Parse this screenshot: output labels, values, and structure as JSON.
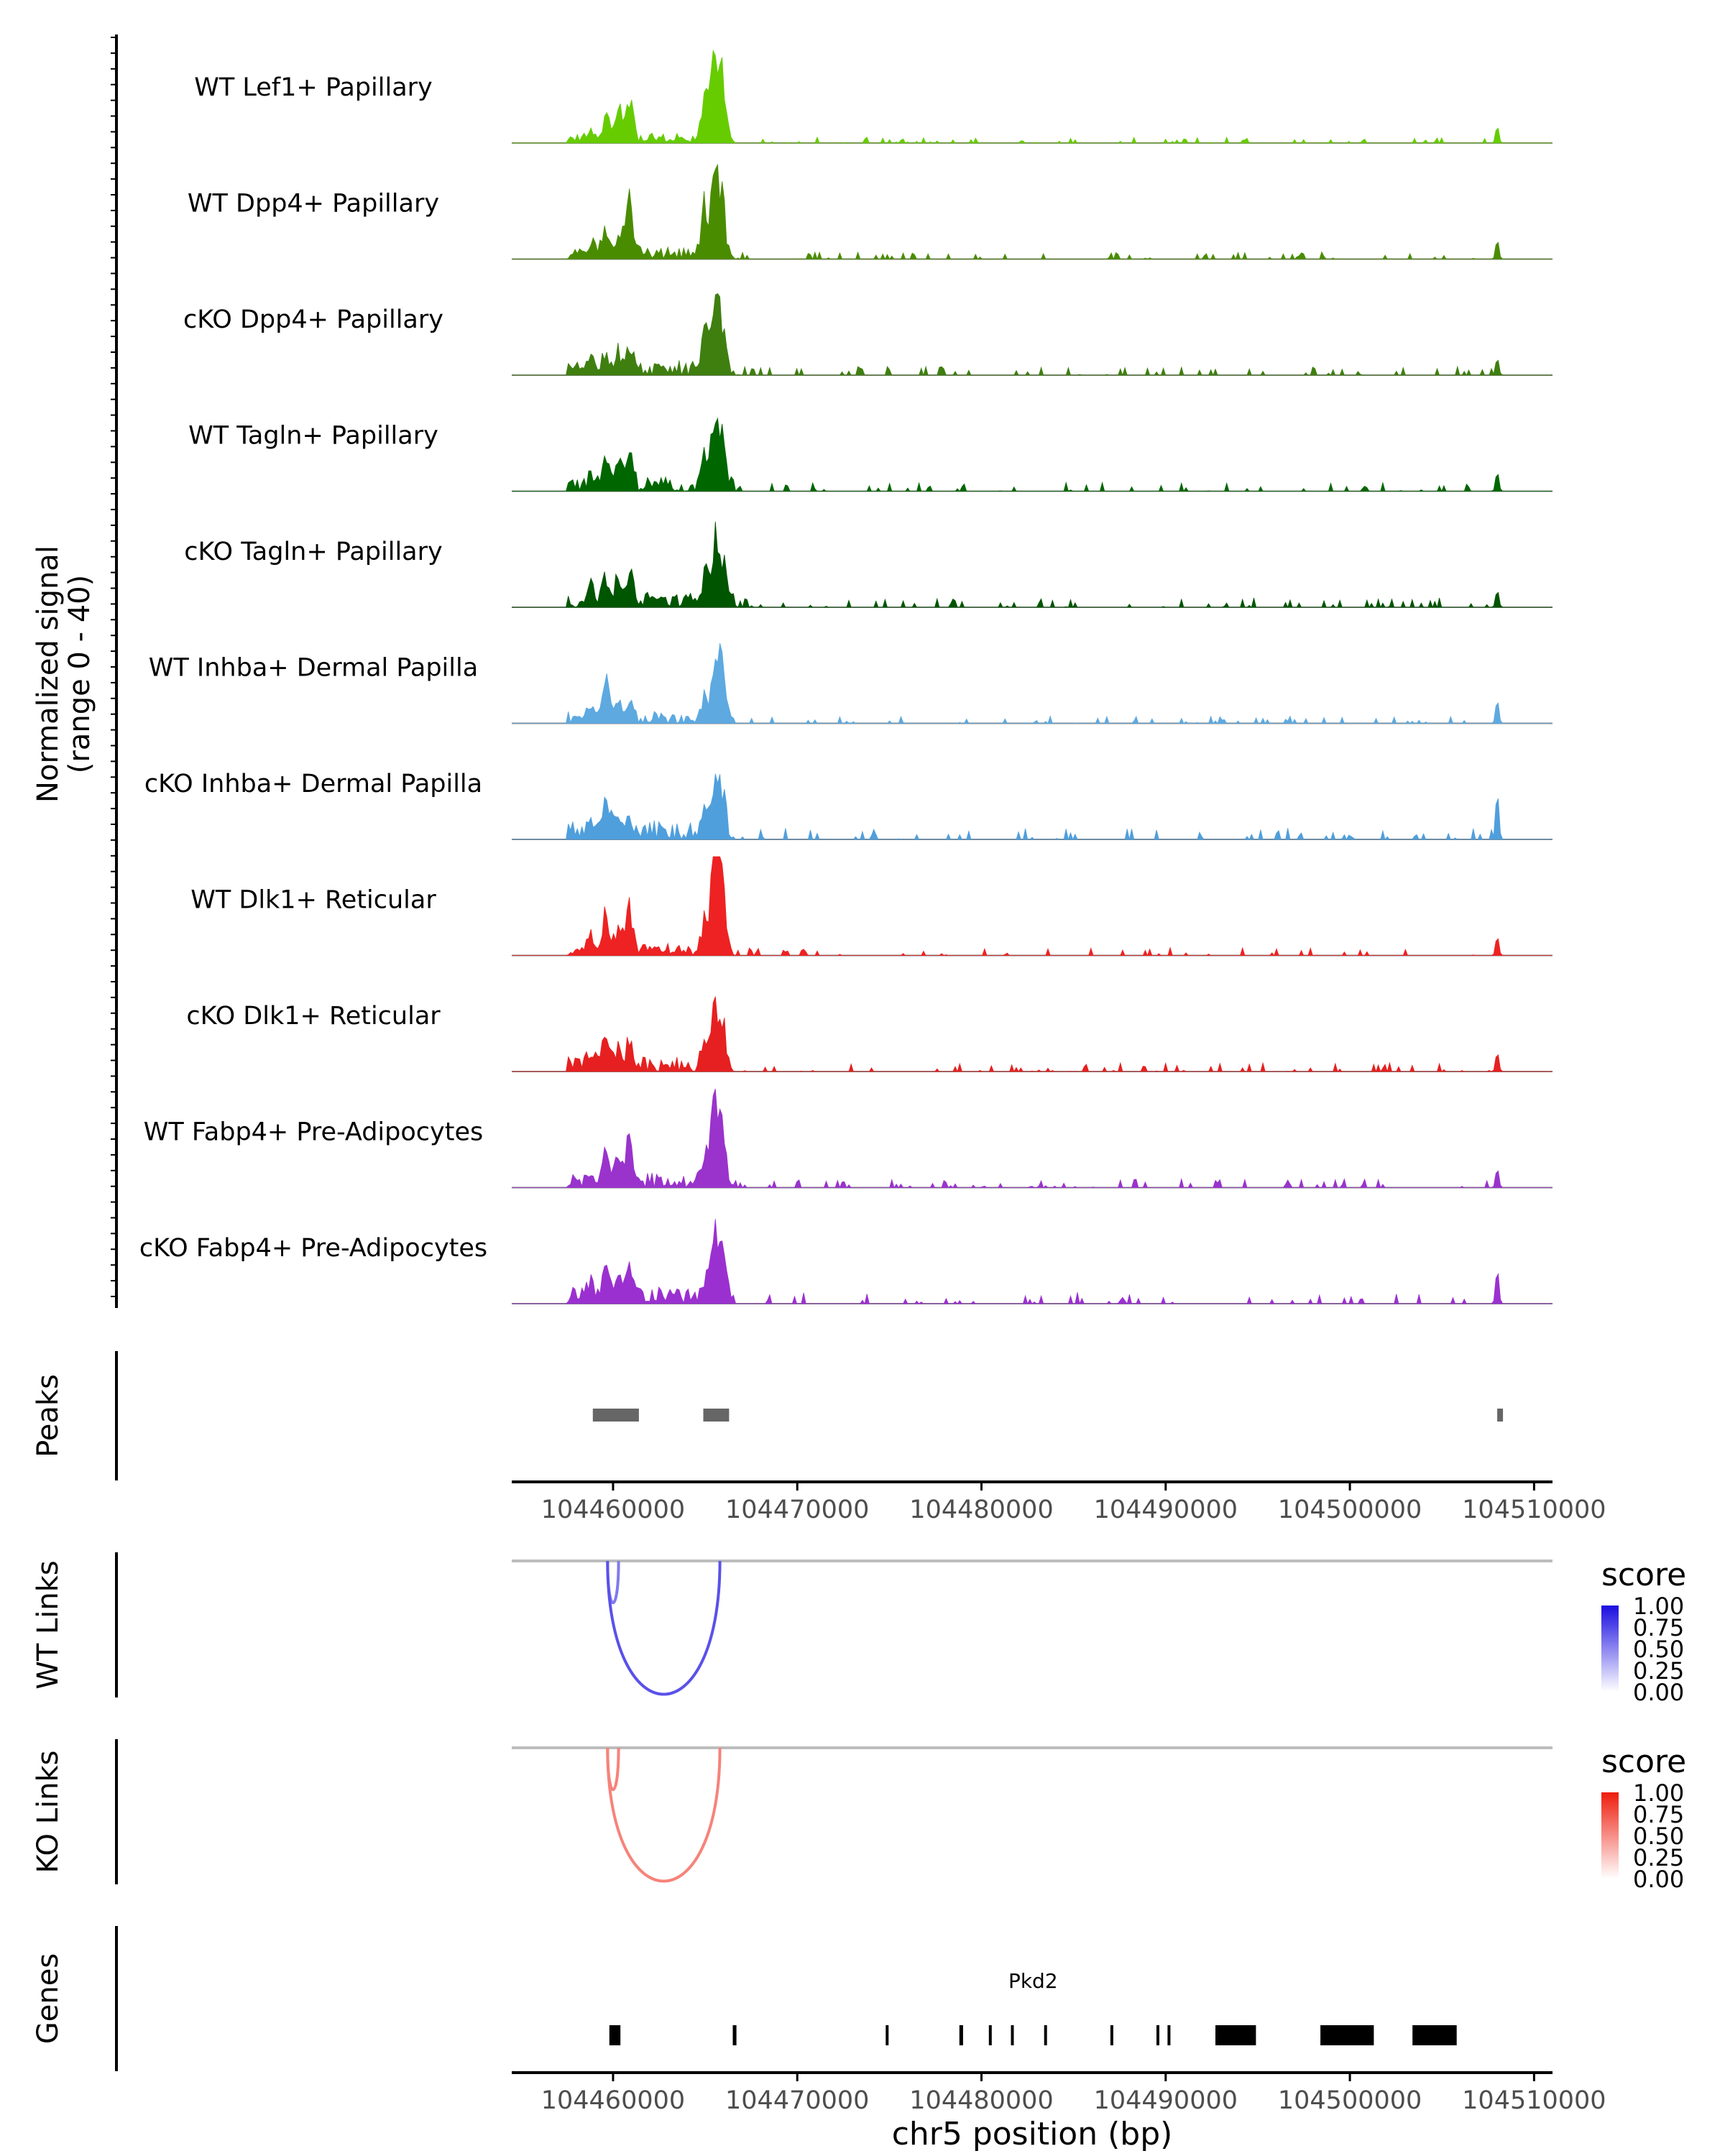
{
  "chart_data": {
    "type": "area",
    "title": "",
    "region": {
      "chromosome": "chr5",
      "start": 104454500,
      "end": 104511000
    },
    "xlabel": "chr5 position (bp)",
    "x_ticks": [
      104460000,
      104470000,
      104480000,
      104490000,
      104500000,
      104510000
    ],
    "x_tick_labels": [
      "104460000",
      "104470000",
      "104480000",
      "104490000",
      "104500000",
      "104510000"
    ],
    "coverage": {
      "ylabel_line1": "Normalized signal",
      "ylabel_line2": "(range 0 - 40)",
      "ylim": [
        0,
        40
      ],
      "peak_centers_bp": [
        104458800,
        104459600,
        104460300,
        104460900,
        104465000,
        104465500,
        104465900,
        104508000
      ],
      "tracks": [
        {
          "name": "WT Lef1+ Papillary",
          "color": "#66cc00",
          "peak_heights": [
            5,
            12,
            15,
            20,
            22,
            38,
            33,
            8
          ],
          "noise": 2.0
        },
        {
          "name": "WT Dpp4+ Papillary",
          "color": "#4a8c00",
          "peak_heights": [
            6,
            14,
            12,
            30,
            26,
            36,
            30,
            9
          ],
          "noise": 2.5
        },
        {
          "name": "cKO Dpp4+ Papillary",
          "color": "#3f7f10",
          "peak_heights": [
            6,
            10,
            9,
            12,
            18,
            28,
            26,
            8
          ],
          "noise": 3.0
        },
        {
          "name": "WT Tagln+ Papillary",
          "color": "#006600",
          "peak_heights": [
            6,
            14,
            12,
            15,
            20,
            33,
            27,
            9
          ],
          "noise": 3.0
        },
        {
          "name": "cKO Tagln+ Papillary",
          "color": "#005500",
          "peak_heights": [
            6,
            13,
            11,
            12,
            16,
            30,
            25,
            8
          ],
          "noise": 3.2
        },
        {
          "name": "WT Inhba+ Dermal Papilla",
          "color": "#5da9e0",
          "peak_heights": [
            4,
            18,
            9,
            6,
            10,
            20,
            30,
            11
          ],
          "noise": 2.5
        },
        {
          "name": "cKO Inhba+ Dermal Papilla",
          "color": "#4f9fdd",
          "peak_heights": [
            5,
            14,
            8,
            6,
            9,
            20,
            19,
            22
          ],
          "noise": 4.0
        },
        {
          "name": "WT Dlk1+ Reticular",
          "color": "#ee2222",
          "peak_heights": [
            6,
            20,
            12,
            24,
            18,
            44,
            34,
            9
          ],
          "noise": 2.8
        },
        {
          "name": "cKO Dlk1+ Reticular",
          "color": "#e62020",
          "peak_heights": [
            6,
            14,
            10,
            11,
            12,
            26,
            24,
            9
          ],
          "noise": 3.0
        },
        {
          "name": "WT Fabp4+ Pre-Adipocytes",
          "color": "#9933cc",
          "peak_heights": [
            5,
            16,
            12,
            22,
            14,
            40,
            26,
            9
          ],
          "noise": 3.0
        },
        {
          "name": "cKO Fabp4+ Pre-Adipocytes",
          "color": "#9b30d0",
          "peak_heights": [
            6,
            18,
            12,
            14,
            12,
            28,
            24,
            16
          ],
          "noise": 4.0
        }
      ]
    },
    "peaks": {
      "label": "Peaks",
      "color": "#666666",
      "regions": [
        {
          "start": 104458900,
          "end": 104461400
        },
        {
          "start": 104464900,
          "end": 104466300
        },
        {
          "start": 104508000,
          "end": 104508300
        }
      ]
    },
    "links": [
      {
        "label": "WT Links",
        "legend_title": "score",
        "legend_ticks": [
          "1.00",
          "0.75",
          "0.50",
          "0.25",
          "0.00"
        ],
        "color_low": "#ffffff",
        "color_high": "#1a0de0",
        "arcs": [
          {
            "start": 104459700,
            "end": 104460300,
            "score": 0.55
          },
          {
            "start": 104459700,
            "end": 104465800,
            "score": 0.72
          }
        ]
      },
      {
        "label": "KO Links",
        "legend_title": "score",
        "legend_ticks": [
          "1.00",
          "0.75",
          "0.50",
          "0.25",
          "0.00"
        ],
        "color_low": "#ffffff",
        "color_high": "#ee1d0d",
        "arcs": [
          {
            "start": 104459700,
            "end": 104460300,
            "score": 0.55
          },
          {
            "start": 104459700,
            "end": 104465800,
            "score": 0.55
          }
        ]
      }
    ],
    "genes": {
      "label": "Genes",
      "color": "#000088",
      "items": [
        {
          "name": "Pkd2",
          "strand": "+",
          "start": 104459800,
          "end": 104505800,
          "exons": [
            {
              "start": 104459800,
              "end": 104460400
            },
            {
              "start": 104466500,
              "end": 104466700
            },
            {
              "start": 104474800,
              "end": 104474950
            },
            {
              "start": 104478800,
              "end": 104479000
            },
            {
              "start": 104480400,
              "end": 104480550
            },
            {
              "start": 104481600,
              "end": 104481750
            },
            {
              "start": 104483400,
              "end": 104483550
            },
            {
              "start": 104487000,
              "end": 104487150
            },
            {
              "start": 104489500,
              "end": 104489650
            },
            {
              "start": 104490100,
              "end": 104490250
            },
            {
              "start": 104492700,
              "end": 104494900
            },
            {
              "start": 104498400,
              "end": 104501300
            },
            {
              "start": 104503400,
              "end": 104505800
            }
          ]
        }
      ]
    }
  }
}
